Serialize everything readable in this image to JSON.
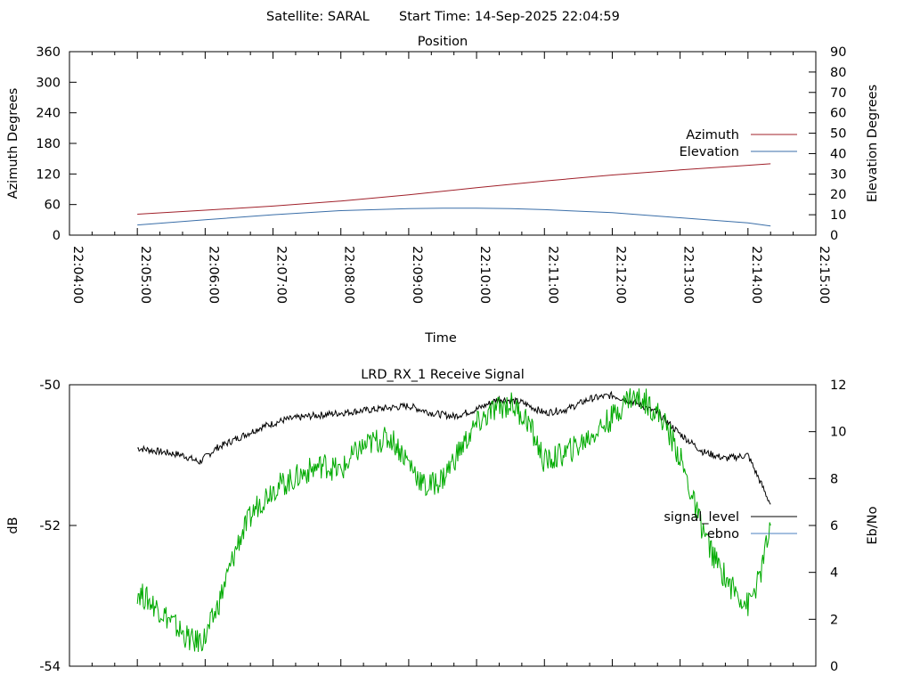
{
  "header": {
    "satellite_text": "Satellite: SARAL",
    "start_text": "Start Time: 14-Sep-2025 22:04:59"
  },
  "colors": {
    "azimuth": "#a0202a",
    "elevation": "#3a6ea8",
    "signal_level": "#000000",
    "ebno": "#00aa00",
    "ebno_legend": "#4a7fbf",
    "axis": "#000000"
  },
  "chart_data": [
    {
      "id": "position",
      "type": "line",
      "title": "Position",
      "xlabel": "Time",
      "ylabel": "Azimuth Degrees",
      "y2label": "Elevation Degrees",
      "x_tick_labels": [
        "22:04:00",
        "22:05:00",
        "22:06:00",
        "22:07:00",
        "22:08:00",
        "22:09:00",
        "22:10:00",
        "22:11:00",
        "22:12:00",
        "22:13:00",
        "22:14:00",
        "22:15:00"
      ],
      "xlim": [
        "22:04:00",
        "22:15:00"
      ],
      "ylim": [
        0,
        360
      ],
      "y_ticks": [
        0,
        60,
        120,
        180,
        240,
        300,
        360
      ],
      "y2lim": [
        0,
        90
      ],
      "y2_ticks": [
        0,
        10,
        20,
        30,
        40,
        50,
        60,
        70,
        80,
        90
      ],
      "grid": false,
      "legend_position": "right",
      "series": [
        {
          "name": "Azimuth",
          "axis": "y",
          "x": [
            "22:05:00",
            "22:06:00",
            "22:07:00",
            "22:08:00",
            "22:09:00",
            "22:10:00",
            "22:11:00",
            "22:12:00",
            "22:13:00",
            "22:14:00",
            "22:14:20"
          ],
          "y": [
            41,
            49,
            57,
            67,
            79,
            93,
            106,
            118,
            128,
            137,
            140
          ]
        },
        {
          "name": "Elevation",
          "axis": "y2",
          "x": [
            "22:05:00",
            "22:06:00",
            "22:07:00",
            "22:08:00",
            "22:08:30",
            "22:09:00",
            "22:09:30",
            "22:10:00",
            "22:10:30",
            "22:11:00",
            "22:12:00",
            "22:13:00",
            "22:14:00",
            "22:14:20"
          ],
          "y": [
            5,
            7.5,
            10,
            12,
            12.5,
            13,
            13.2,
            13.2,
            13,
            12.5,
            11,
            8.5,
            6,
            4.5
          ]
        }
      ]
    },
    {
      "id": "receive",
      "type": "line",
      "title": "LRD_RX_1 Receive Signal",
      "ylabel": "dB",
      "y2label": "Eb/No",
      "xlim": [
        "22:04:00",
        "22:15:00"
      ],
      "ylim": [
        -54,
        -50
      ],
      "y_ticks": [
        -54,
        -52,
        -50
      ],
      "y2lim": [
        0,
        12
      ],
      "y2_ticks": [
        0,
        2,
        4,
        6,
        8,
        10,
        12
      ],
      "grid": false,
      "legend_position": "right",
      "series": [
        {
          "name": "signal_level",
          "axis": "y",
          "x": [
            "22:05:00",
            "22:05:20",
            "22:05:40",
            "22:05:55",
            "22:06:10",
            "22:06:30",
            "22:06:50",
            "22:07:10",
            "22:07:30",
            "22:08:00",
            "22:08:30",
            "22:09:00",
            "22:09:20",
            "22:09:40",
            "22:10:00",
            "22:10:20",
            "22:10:40",
            "22:11:00",
            "22:11:20",
            "22:11:40",
            "22:12:00",
            "22:12:20",
            "22:12:40",
            "22:13:00",
            "22:13:20",
            "22:13:40",
            "22:14:00",
            "22:14:20"
          ],
          "y": [
            -50.9,
            -50.95,
            -51.0,
            -51.1,
            -50.9,
            -50.75,
            -50.6,
            -50.5,
            -50.45,
            -50.4,
            -50.35,
            -50.3,
            -50.4,
            -50.45,
            -50.35,
            -50.2,
            -50.25,
            -50.4,
            -50.35,
            -50.2,
            -50.15,
            -50.25,
            -50.4,
            -50.7,
            -50.95,
            -51.05,
            -51.0,
            -51.7
          ]
        },
        {
          "name": "ebno",
          "axis": "y2",
          "x": [
            "22:05:00",
            "22:05:10",
            "22:05:20",
            "22:05:30",
            "22:05:40",
            "22:05:50",
            "22:06:00",
            "22:06:10",
            "22:06:20",
            "22:06:30",
            "22:06:45",
            "22:07:00",
            "22:07:15",
            "22:07:30",
            "22:07:45",
            "22:08:00",
            "22:08:15",
            "22:08:30",
            "22:08:45",
            "22:09:00",
            "22:09:15",
            "22:09:30",
            "22:09:45",
            "22:10:00",
            "22:10:15",
            "22:10:30",
            "22:10:45",
            "22:11:00",
            "22:11:15",
            "22:11:30",
            "22:11:45",
            "22:12:00",
            "22:12:15",
            "22:12:30",
            "22:12:45",
            "22:13:00",
            "22:13:15",
            "22:13:30",
            "22:13:45",
            "22:14:00",
            "22:14:10",
            "22:14:20"
          ],
          "y": [
            3.2,
            2.8,
            2.4,
            1.9,
            1.4,
            1.0,
            1.2,
            2.4,
            3.9,
            5.4,
            6.8,
            7.6,
            7.9,
            8.3,
            8.6,
            8.3,
            9.2,
            9.6,
            9.7,
            8.7,
            7.6,
            8.0,
            9.2,
            10.3,
            10.9,
            11.2,
            10.5,
            8.7,
            9.0,
            9.4,
            10.0,
            10.6,
            11.5,
            11.3,
            10.5,
            8.9,
            6.5,
            4.6,
            3.4,
            2.6,
            3.7,
            6.0
          ]
        }
      ]
    }
  ]
}
